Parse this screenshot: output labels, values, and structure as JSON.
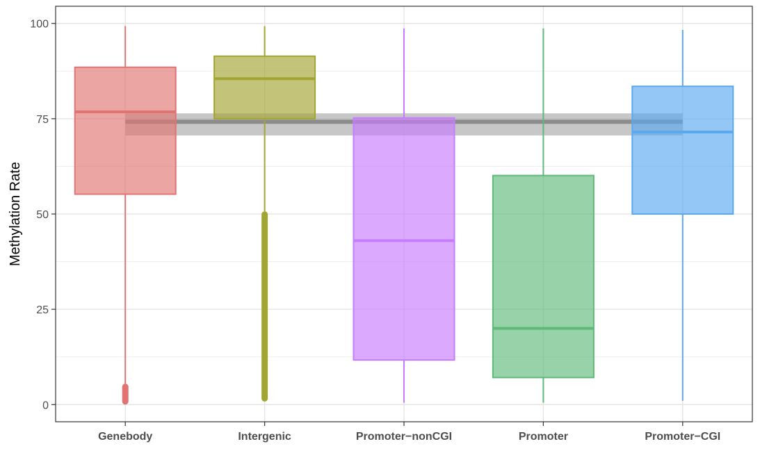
{
  "chart_data": {
    "type": "boxplot",
    "title": "",
    "xlabel": "",
    "ylabel": "Methylation Rate",
    "ylim": [
      -4.5,
      104.5
    ],
    "yticks": [
      0,
      25,
      50,
      75,
      100
    ],
    "ytick_labels": [
      "0",
      "25",
      "50",
      "75",
      "100"
    ],
    "grid": true,
    "categories": [
      "Genebody",
      "Intergenic",
      "Promoter−nonCGI",
      "Promoter",
      "Promoter−CGI"
    ],
    "series": [
      {
        "category": "Genebody",
        "color": "#e07470",
        "whisker_low": 5.5,
        "q1": 55.2,
        "median": 76.8,
        "q3": 88.5,
        "whisker_high": 99.3,
        "outliers_range": [
          0,
          5.5
        ]
      },
      {
        "category": "Intergenic",
        "color": "#a3a532",
        "whisker_low": 50.7,
        "q1": 75.0,
        "median": 85.5,
        "q3": 91.4,
        "whisker_high": 99.3,
        "outliers_range": [
          0.8,
          50.7
        ]
      },
      {
        "category": "Promoter−nonCGI",
        "color": "#c77cff",
        "whisker_low": 0.5,
        "q1": 11.7,
        "median": 43.0,
        "q3": 75.2,
        "whisker_high": 98.7
      },
      {
        "category": "Promoter",
        "color": "#5fba7a",
        "whisker_low": 0.5,
        "q1": 7.1,
        "median": 20.0,
        "q3": 60.1,
        "whisker_high": 98.7
      },
      {
        "category": "Promoter−CGI",
        "color": "#5aa9f0",
        "whisker_low": 1.0,
        "q1": 50.0,
        "median": 71.5,
        "q3": 83.5,
        "whisker_high": 98.3
      }
    ],
    "reference_band": {
      "center": 74.2,
      "low": 70.6,
      "high": 76.4,
      "color": "#999999",
      "from_category": "Genebody",
      "to_category": "Promoter−CGI"
    }
  }
}
